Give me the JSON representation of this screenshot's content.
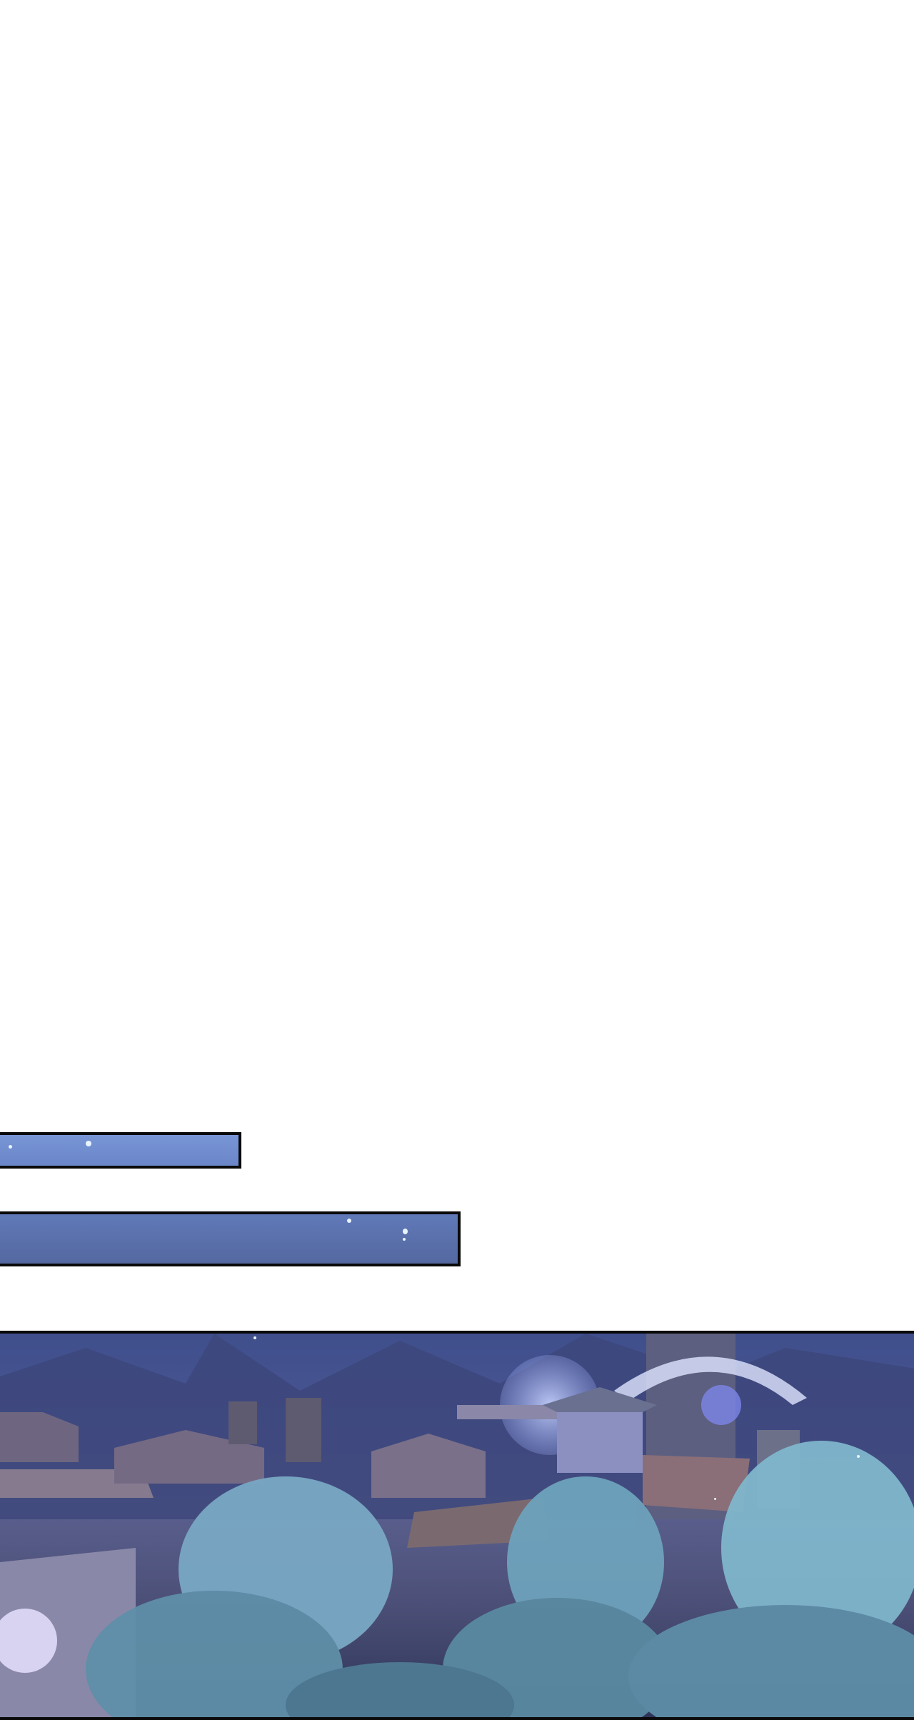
{
  "colors": {
    "background": "#ffffff",
    "bar_top": "#7895d6",
    "bar_bottom": "#5468a0",
    "panel_border": "#0a0a0a",
    "foliage": "#7fb3c8"
  },
  "panels": [
    {
      "kind": "sky-strip"
    },
    {
      "kind": "sky-strip"
    },
    {
      "kind": "night-town-illustration"
    }
  ]
}
